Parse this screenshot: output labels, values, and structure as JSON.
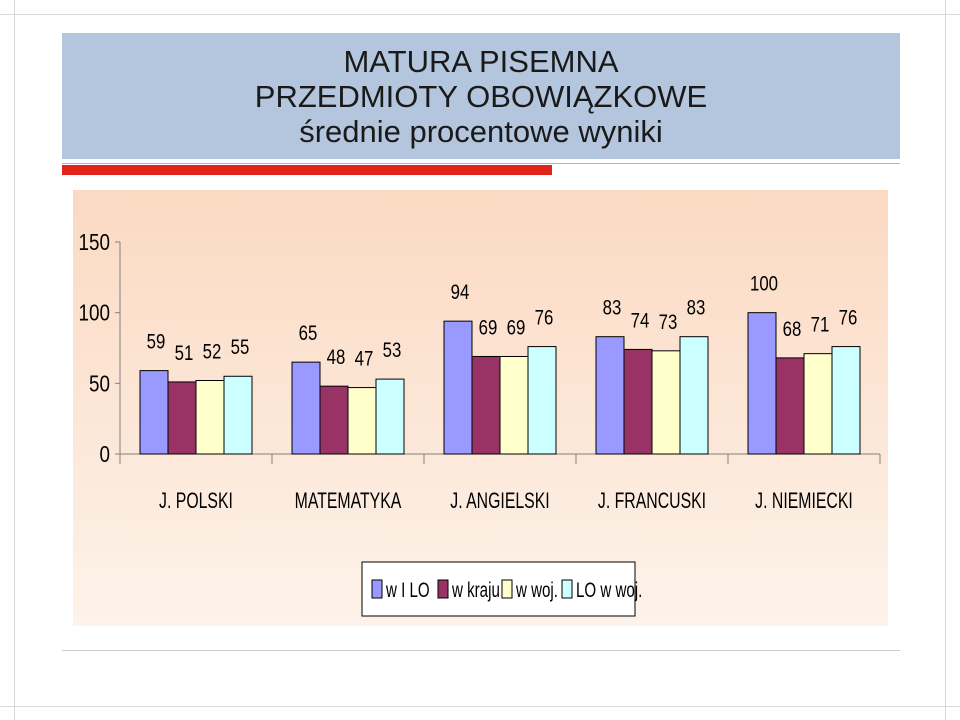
{
  "title": {
    "line1": "MATURA PISEMNA",
    "line2": "PRZEDMIOTY OBOWIĄZKOWE",
    "line3": "średnie procentowe wyniki"
  },
  "colors": {
    "title_bg": "#b3c6de",
    "accent_red": "#e2231a",
    "plot_bg_top": "#fbd9c2",
    "plot_bg_bottom": "#fdf3ea"
  },
  "chart_data": {
    "type": "bar",
    "categories": [
      "J. POLSKI",
      "MATEMATYKA",
      "J. ANGIELSKI",
      "J. FRANCUSKI",
      "J. NIEMIECKI"
    ],
    "series": [
      {
        "name": "w I LO",
        "color": "#9999ff",
        "values": [
          59,
          65,
          94,
          83,
          100
        ]
      },
      {
        "name": "w kraju",
        "color": "#993366",
        "values": [
          51,
          48,
          69,
          74,
          68
        ]
      },
      {
        "name": "w woj.",
        "color": "#ffffcc",
        "values": [
          52,
          47,
          69,
          73,
          71
        ]
      },
      {
        "name": "LO w woj.",
        "color": "#ccffff",
        "values": [
          55,
          53,
          76,
          83,
          76
        ]
      }
    ],
    "ylim": [
      0,
      150
    ],
    "yticks": [
      0,
      50,
      100,
      150
    ],
    "grid": false,
    "legend_position": "bottom"
  }
}
